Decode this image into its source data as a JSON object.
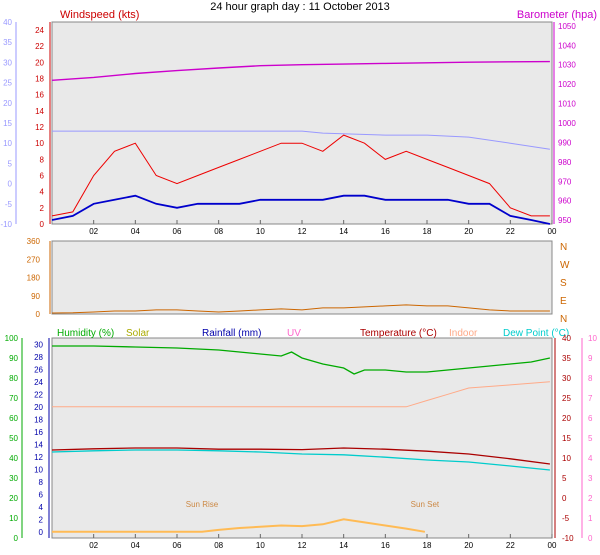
{
  "title": "24 hour graph day : 11 October 2013",
  "chart_data": [
    {
      "type": "line",
      "panel": "wind-barometer",
      "title_left": "Windspeed (kts)",
      "title_right": "Barometer (hpa)",
      "x_ticks": [
        "02",
        "04",
        "06",
        "08",
        "10",
        "12",
        "14",
        "16",
        "18",
        "20",
        "22",
        "00"
      ],
      "left_axis": {
        "ticks": [
          "24",
          "22",
          "20",
          "18",
          "16",
          "14",
          "12",
          "10",
          "8",
          "6",
          "4",
          "2",
          "0"
        ],
        "ylim": [
          0,
          25
        ]
      },
      "left_outer_axis": {
        "ticks": [
          "40",
          "35",
          "30",
          "25",
          "20",
          "15",
          "10",
          "5",
          "0",
          "-5",
          "-10"
        ],
        "ylim": [
          -10,
          40
        ]
      },
      "right_axis": {
        "ticks": [
          "1050",
          "1040",
          "1030",
          "1020",
          "1010",
          "1000",
          "990",
          "980",
          "970",
          "960",
          "950"
        ],
        "ylim": [
          948,
          1052
        ]
      },
      "series": [
        {
          "name": "Barometer",
          "color": "#cc00cc",
          "x": [
            0,
            2,
            4,
            6,
            8,
            10,
            12,
            14,
            16,
            18,
            20,
            22,
            23.9
          ],
          "y": [
            1022,
            1023.5,
            1025.5,
            1027,
            1028.3,
            1029.5,
            1030,
            1030.3,
            1030.7,
            1031,
            1031.3,
            1031.5,
            1031.6
          ]
        },
        {
          "name": "Gust",
          "color": "#ee0000",
          "x": [
            0,
            1,
            2,
            3,
            4,
            5,
            6,
            7,
            8,
            9,
            10,
            11,
            12,
            13,
            14,
            15,
            16,
            17,
            18,
            19,
            20,
            21,
            22,
            23,
            23.9
          ],
          "y": [
            1,
            1.5,
            6,
            9,
            10,
            6,
            5,
            6,
            7,
            8,
            9,
            10,
            10,
            9,
            11,
            10,
            8,
            9,
            8,
            7,
            6,
            5,
            2,
            1,
            1
          ]
        },
        {
          "name": "Windspeed",
          "color": "#0000cc",
          "x": [
            0,
            1,
            2,
            3,
            4,
            5,
            6,
            7,
            8,
            9,
            10,
            11,
            12,
            13,
            14,
            15,
            16,
            17,
            18,
            19,
            20,
            21,
            22,
            23,
            23.9
          ],
          "y": [
            0.5,
            1,
            2.5,
            3,
            3.5,
            2.5,
            2,
            2.5,
            2.5,
            2.5,
            3,
            3,
            3,
            3,
            3.5,
            3.5,
            3,
            3,
            3,
            3,
            2.5,
            2.5,
            1,
            0.5,
            0
          ]
        },
        {
          "name": "Temperature",
          "color": "#9999ff",
          "x": [
            0,
            4,
            8,
            12,
            13,
            16,
            18,
            20,
            22,
            23.9
          ],
          "y": [
            13,
            13,
            13,
            13,
            12.5,
            12,
            12,
            11.5,
            10,
            8.5
          ]
        }
      ]
    },
    {
      "type": "line",
      "panel": "wind-direction",
      "left_axis": {
        "ticks": [
          "360",
          "270",
          "180",
          "90",
          "0"
        ],
        "ylim": [
          0,
          360
        ]
      },
      "right_labels": [
        "N",
        "W",
        "S",
        "E",
        "N"
      ],
      "series": [
        {
          "name": "Direction",
          "color": "#cc6600",
          "x": [
            0,
            1,
            2,
            3,
            4,
            5,
            6,
            7,
            8,
            9,
            10,
            11,
            12,
            13,
            14,
            15,
            16,
            17,
            18,
            19,
            20,
            21,
            22,
            23,
            23.9
          ],
          "y": [
            5,
            6,
            10,
            15,
            15,
            20,
            20,
            15,
            10,
            15,
            20,
            25,
            20,
            30,
            30,
            35,
            40,
            45,
            40,
            40,
            30,
            20,
            15,
            15,
            15
          ]
        }
      ]
    },
    {
      "type": "line",
      "panel": "temp-humidity",
      "labels": [
        "Humidity (%)",
        "Solar",
        "Rainfall (mm)",
        "UV",
        "Temperature (°C)",
        "Indoor",
        "Dew Point (°C)"
      ],
      "left_outer_axis": {
        "ticks": [
          "100",
          "90",
          "80",
          "70",
          "60",
          "50",
          "40",
          "30",
          "20",
          "10",
          "0"
        ],
        "ylim": [
          0,
          100
        ]
      },
      "left_axis": {
        "ticks": [
          "30",
          "28",
          "26",
          "24",
          "22",
          "20",
          "18",
          "16",
          "14",
          "12",
          "10",
          "8",
          "6",
          "4",
          "2",
          "0"
        ],
        "ylim": [
          -1,
          31
        ]
      },
      "right_axis": {
        "ticks": [
          "40",
          "35",
          "30",
          "25",
          "20",
          "15",
          "10",
          "5",
          "0",
          "-5",
          "-10"
        ],
        "ylim": [
          -10,
          40
        ]
      },
      "right_outer_axis": {
        "ticks": [
          "10",
          "9",
          "8",
          "7",
          "6",
          "5",
          "4",
          "3",
          "2",
          "1",
          "0"
        ],
        "ylim": [
          0,
          10
        ]
      },
      "sun_labels": [
        "Sun Rise",
        "Sun Set"
      ],
      "series": [
        {
          "name": "Humidity",
          "color": "#00aa00",
          "x": [
            0,
            2,
            4,
            6,
            8,
            9,
            10,
            11,
            11.5,
            12,
            13,
            14,
            14.5,
            15,
            16,
            17,
            18,
            19,
            20,
            21,
            22,
            23,
            23.9
          ],
          "y": [
            96,
            96,
            95.5,
            95,
            94,
            93,
            92,
            91,
            93,
            90,
            87,
            85,
            82,
            84,
            84,
            83,
            83,
            84,
            85,
            86,
            87,
            88,
            90
          ]
        },
        {
          "name": "Indoor",
          "color": "#ffaa88",
          "x": [
            0,
            4,
            8,
            12,
            16,
            17,
            18,
            19,
            20,
            22,
            23.9
          ],
          "y": [
            20,
            20,
            20,
            20,
            20,
            20,
            21,
            22,
            23,
            23.5,
            24
          ]
        },
        {
          "name": "Temperature",
          "color": "#aa0000",
          "x": [
            0,
            2,
            4,
            6,
            8,
            10,
            12,
            14,
            16,
            18,
            20,
            22,
            23.9
          ],
          "y": [
            12,
            12.3,
            12.5,
            12.5,
            12.2,
            12.2,
            12.1,
            12.5,
            12.2,
            11.7,
            11,
            9.8,
            8.5
          ]
        },
        {
          "name": "Dew Point",
          "color": "#00cccc",
          "x": [
            0,
            2,
            4,
            6,
            8,
            10,
            12,
            14,
            16,
            18,
            20,
            22,
            23.9
          ],
          "y": [
            11.5,
            11.8,
            12,
            12,
            11.8,
            11.5,
            11,
            10.8,
            10.2,
            9.5,
            9,
            8,
            7
          ]
        },
        {
          "name": "Solar",
          "color": "#ffbb55",
          "x": [
            0,
            7.2,
            8,
            9,
            10,
            11,
            12,
            13,
            14,
            15,
            16,
            17,
            17.9
          ],
          "y": [
            0,
            0,
            0.3,
            0.6,
            0.8,
            1,
            0.9,
            1.2,
            2,
            1.5,
            1,
            0.5,
            0
          ]
        }
      ]
    }
  ]
}
